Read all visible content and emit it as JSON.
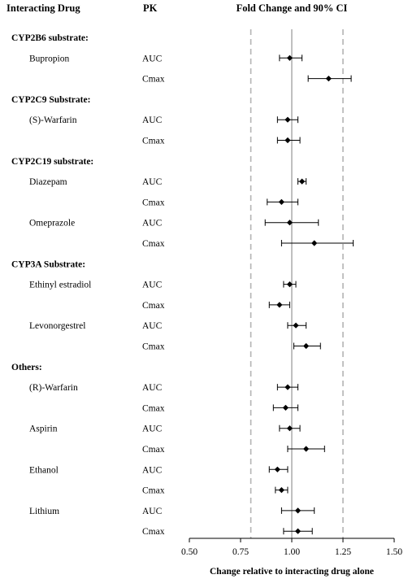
{
  "header": {
    "col_drug": "Interacting Drug",
    "col_pk": "PK",
    "col_plot": "Fold Change and 90% CI"
  },
  "chart_data": {
    "type": "forest",
    "xlabel": "Change relative to interacting drug alone",
    "xlim": [
      0.5,
      1.5
    ],
    "xticks": [
      "0.50",
      "0.75",
      "1.00",
      "1.25",
      "1.50"
    ],
    "tick_values": [
      0.5,
      0.75,
      1.0,
      1.25,
      1.5
    ],
    "reference_line": 1.0,
    "dashed_lines": [
      0.8,
      1.25
    ],
    "rows": [
      {
        "kind": "group",
        "label": "CYP2B6 substrate:"
      },
      {
        "kind": "data",
        "drug": "Bupropion",
        "pk": "AUC",
        "est": 0.99,
        "lo": 0.94,
        "hi": 1.05
      },
      {
        "kind": "data",
        "drug": "",
        "pk": "Cmax",
        "est": 1.18,
        "lo": 1.08,
        "hi": 1.29
      },
      {
        "kind": "group",
        "label": "CYP2C9 Substrate:"
      },
      {
        "kind": "data",
        "drug": "(S)-Warfarin",
        "pk": "AUC",
        "est": 0.98,
        "lo": 0.93,
        "hi": 1.03
      },
      {
        "kind": "data",
        "drug": "",
        "pk": "Cmax",
        "est": 0.98,
        "lo": 0.93,
        "hi": 1.04
      },
      {
        "kind": "group",
        "label": "CYP2C19 substrate:"
      },
      {
        "kind": "data",
        "drug": "Diazepam",
        "pk": "AUC",
        "est": 1.05,
        "lo": 1.03,
        "hi": 1.07
      },
      {
        "kind": "data",
        "drug": "",
        "pk": "Cmax",
        "est": 0.95,
        "lo": 0.88,
        "hi": 1.03
      },
      {
        "kind": "data",
        "drug": "Omeprazole",
        "pk": "AUC",
        "est": 0.99,
        "lo": 0.87,
        "hi": 1.13
      },
      {
        "kind": "data",
        "drug": "",
        "pk": "Cmax",
        "est": 1.11,
        "lo": 0.95,
        "hi": 1.3
      },
      {
        "kind": "group",
        "label": "CYP3A Substrate:"
      },
      {
        "kind": "data",
        "drug": "Ethinyl estradiol",
        "pk": "AUC",
        "est": 0.99,
        "lo": 0.96,
        "hi": 1.02
      },
      {
        "kind": "data",
        "drug": "",
        "pk": "Cmax",
        "est": 0.94,
        "lo": 0.89,
        "hi": 0.99
      },
      {
        "kind": "data",
        "drug": "Levonorgestrel",
        "pk": "AUC",
        "est": 1.02,
        "lo": 0.98,
        "hi": 1.07
      },
      {
        "kind": "data",
        "drug": "",
        "pk": "Cmax",
        "est": 1.07,
        "lo": 1.01,
        "hi": 1.14
      },
      {
        "kind": "group",
        "label": "Others:"
      },
      {
        "kind": "data",
        "drug": "(R)-Warfarin",
        "pk": "AUC",
        "est": 0.98,
        "lo": 0.93,
        "hi": 1.03
      },
      {
        "kind": "data",
        "drug": "",
        "pk": "Cmax",
        "est": 0.97,
        "lo": 0.91,
        "hi": 1.03
      },
      {
        "kind": "data",
        "drug": "Aspirin",
        "pk": "AUC",
        "est": 0.99,
        "lo": 0.94,
        "hi": 1.04
      },
      {
        "kind": "data",
        "drug": "",
        "pk": "Cmax",
        "est": 1.07,
        "lo": 0.98,
        "hi": 1.16
      },
      {
        "kind": "data",
        "drug": "Ethanol",
        "pk": "AUC",
        "est": 0.93,
        "lo": 0.89,
        "hi": 0.98
      },
      {
        "kind": "data",
        "drug": "",
        "pk": "Cmax",
        "est": 0.95,
        "lo": 0.92,
        "hi": 0.98
      },
      {
        "kind": "data",
        "drug": "Lithium",
        "pk": "AUC",
        "est": 1.03,
        "lo": 0.95,
        "hi": 1.11
      },
      {
        "kind": "data",
        "drug": "",
        "pk": "Cmax",
        "est": 1.03,
        "lo": 0.96,
        "hi": 1.1
      }
    ]
  }
}
